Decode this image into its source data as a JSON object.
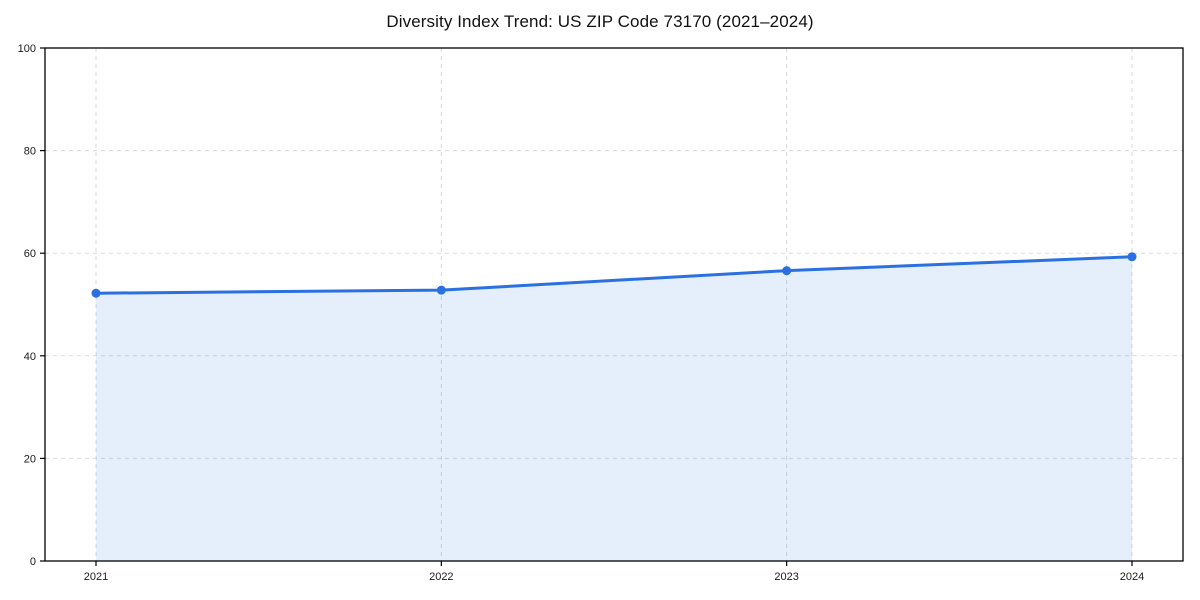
{
  "chart": {
    "title": "Diversity Index Trend: US ZIP Code 73170 (2021–2024)"
  },
  "chart_data": {
    "type": "area",
    "title": "Diversity Index Trend: US ZIP Code 73170 (2021–2024)",
    "categories": [
      "2021",
      "2022",
      "2023",
      "2024"
    ],
    "series": [
      {
        "name": "Diversity Index",
        "values": [
          52.2,
          52.8,
          56.6,
          59.3
        ]
      }
    ],
    "xlabel": "",
    "ylabel": "",
    "ylim": [
      0,
      100
    ],
    "yticks": [
      0,
      20,
      40,
      60,
      80,
      100
    ],
    "grid": true,
    "grid_style": "dashed",
    "legend": false,
    "colors": {
      "line": "#2b70e0",
      "marker": "#2b70e0",
      "fill": "#2b70e0",
      "fill_opacity": 0.12,
      "gridline": "#d9d9d9",
      "axis": "#000000",
      "tick_text": "#1a1a1a",
      "background": "#ffffff"
    }
  }
}
